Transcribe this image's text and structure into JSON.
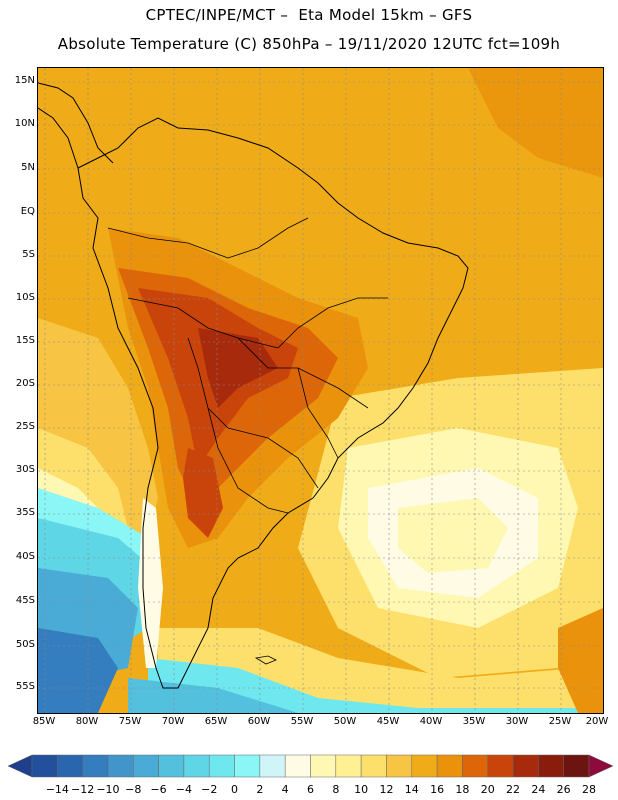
{
  "header": {
    "line1": "CPTEC/INPE/MCT –  Eta Model 15km – GFS",
    "line2": "Absolute Temperature (C) 850hPa – 19/11/2020 12UTC fct=109h"
  },
  "axes": {
    "latitudes": [
      "15N",
      "10N",
      "5N",
      "EQ",
      "5S",
      "10S",
      "15S",
      "20S",
      "25S",
      "30S",
      "35S",
      "40S",
      "45S",
      "50S",
      "55S"
    ],
    "longitudes": [
      "85W",
      "80W",
      "75W",
      "70W",
      "65W",
      "60W",
      "55W",
      "50W",
      "45W",
      "40W",
      "35W",
      "30W",
      "25W",
      "20W"
    ]
  },
  "colorbar": {
    "labels": [
      "-14",
      "-12",
      "-10",
      "-8",
      "-6",
      "-4",
      "-2",
      "0",
      "2",
      "4",
      "6",
      "8",
      "10",
      "12",
      "14",
      "16",
      "18",
      "20",
      "22",
      "24",
      "26",
      "28"
    ],
    "colors": [
      "#1f3f8c",
      "#23509c",
      "#2a66ad",
      "#347dbe",
      "#4195cb",
      "#4aacd6",
      "#53c1de",
      "#5fd6e6",
      "#6ee8ee",
      "#8af6f6",
      "#d0f5f8",
      "#fffbe4",
      "#fff8b2",
      "#fef093",
      "#fde06c",
      "#f7c444",
      "#f0ac18",
      "#ea920c",
      "#dc6608",
      "#c9440a",
      "#a82a0c",
      "#8a1c0c",
      "#6c1410",
      "#8c0a3c"
    ]
  }
}
